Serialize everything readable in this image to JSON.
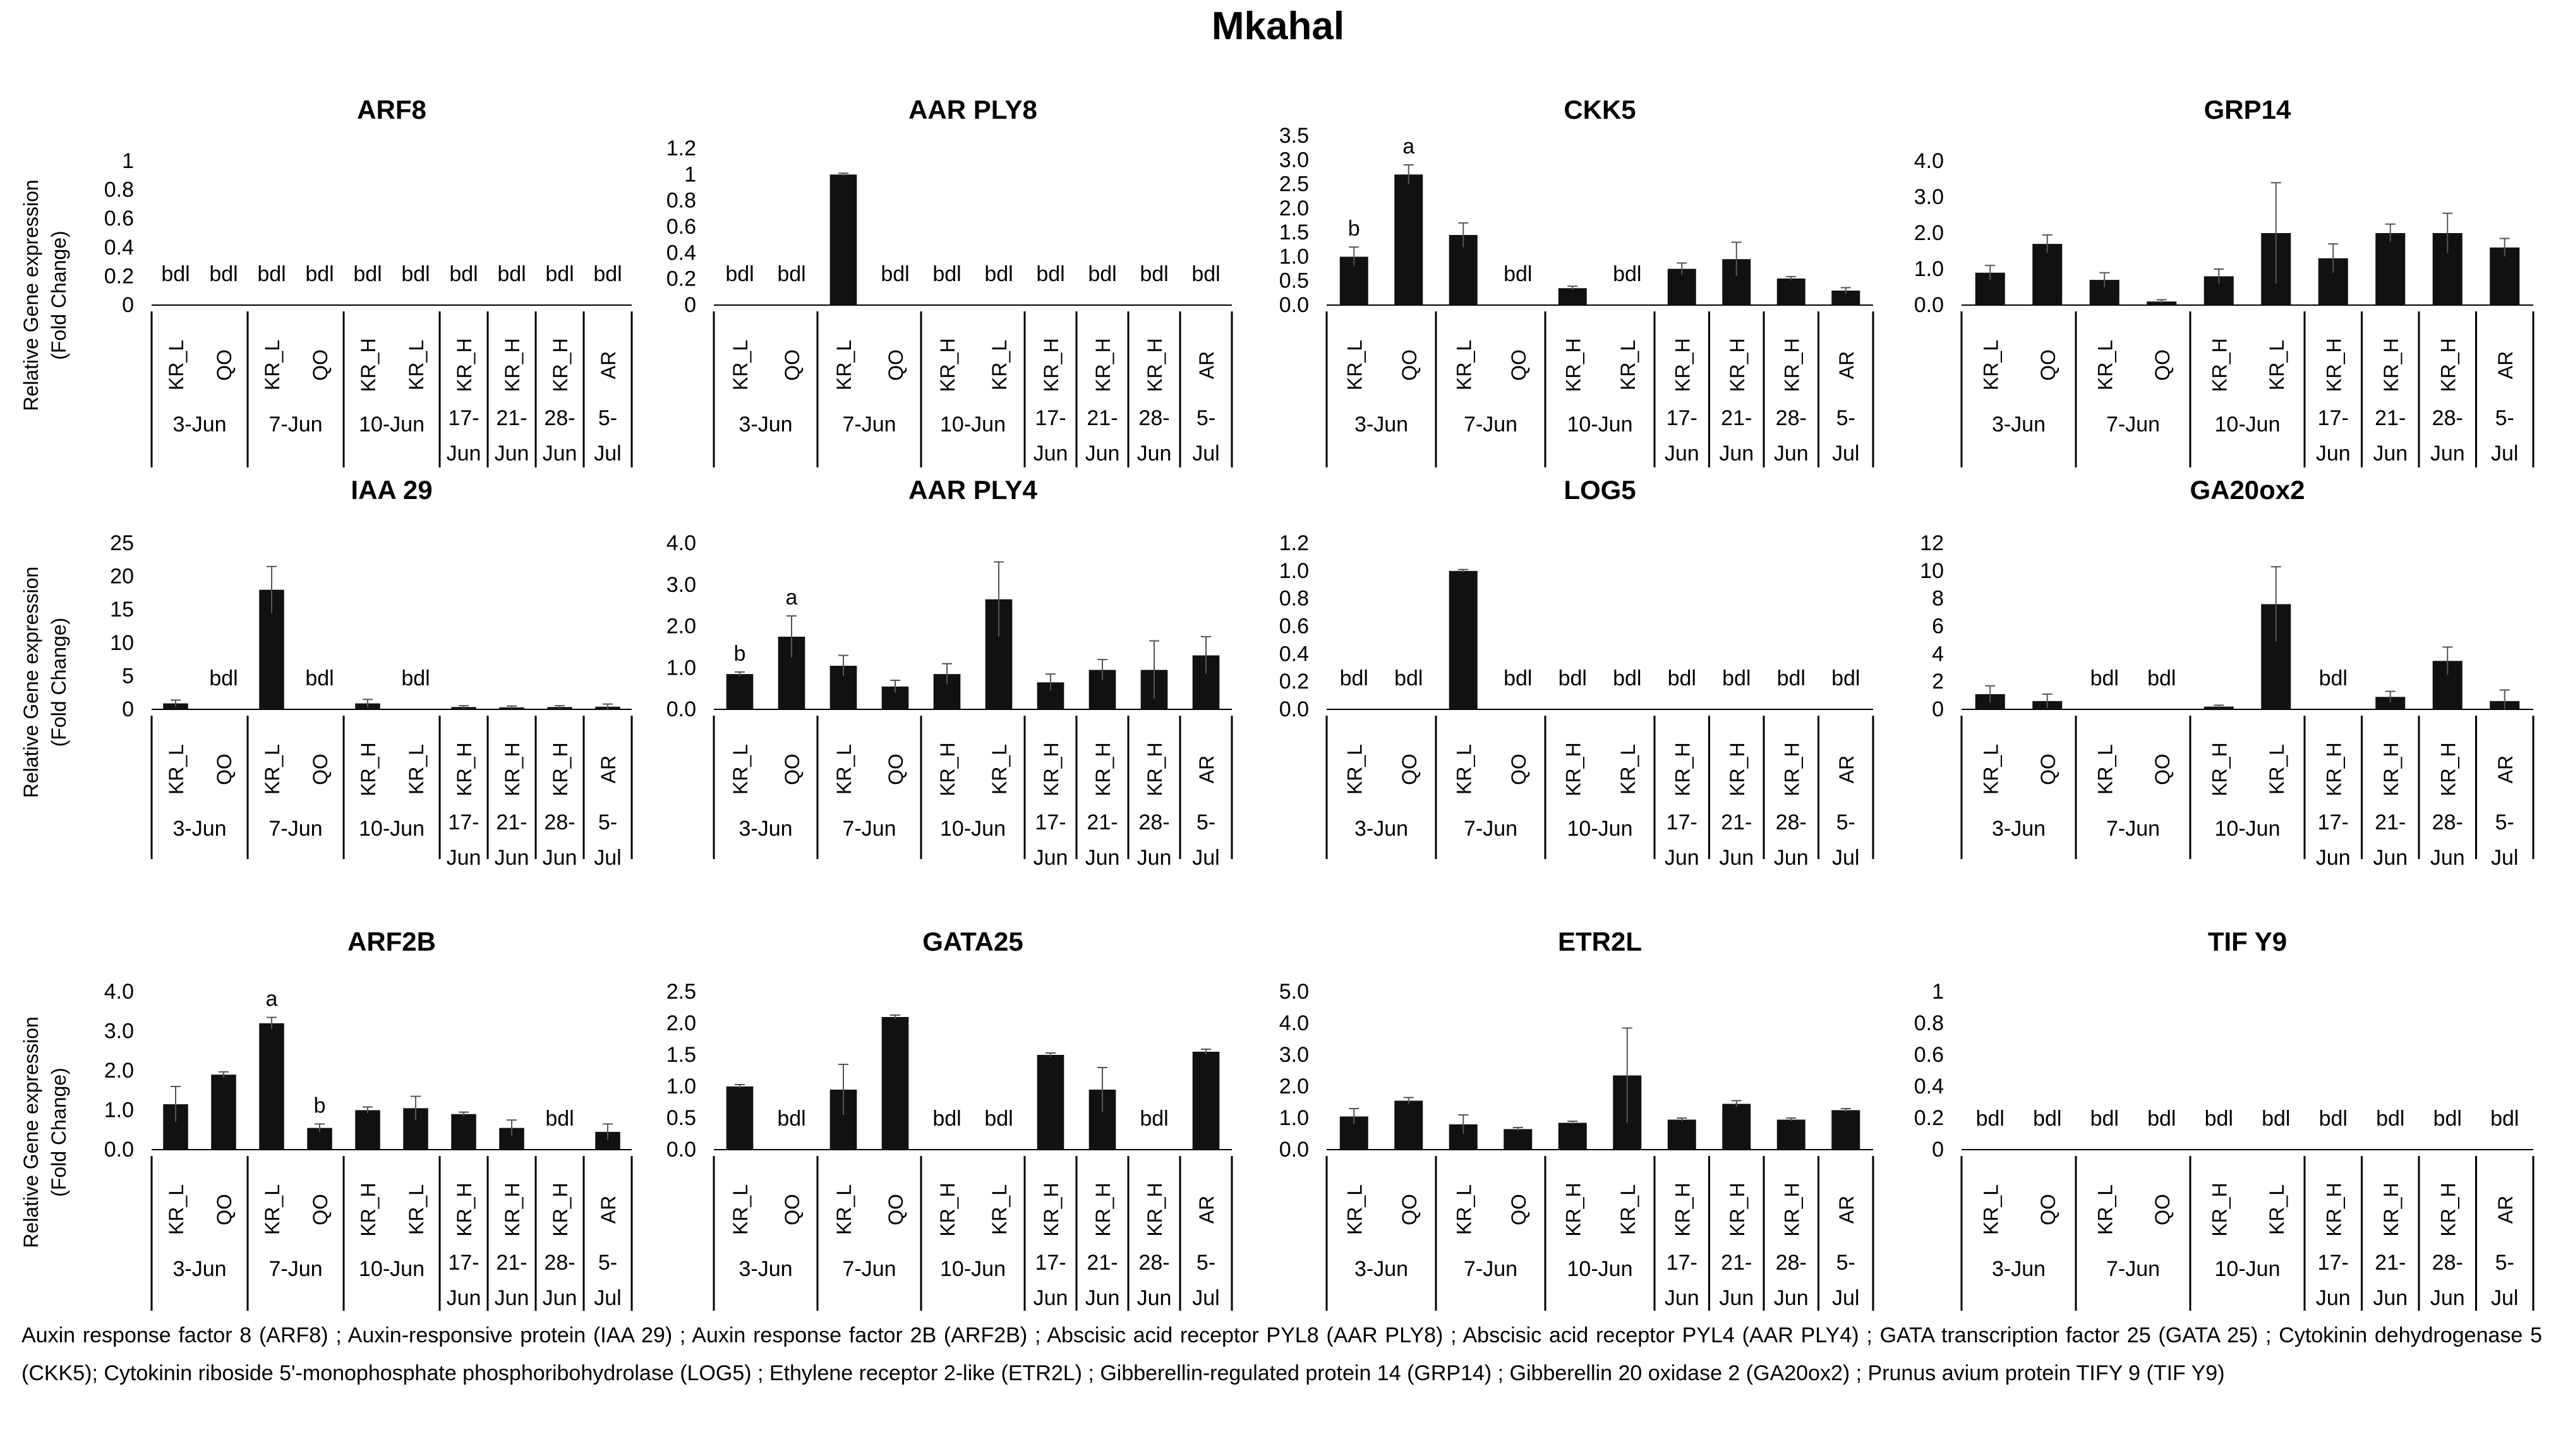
{
  "figure_title": "Mkahal",
  "caption": "Auxin response factor 8 (ARF8) ; Auxin-responsive protein (IAA 29) ; Auxin response factor 2B (ARF2B) ; Abscisic acid receptor PYL8 (AAR PLY8) ; Abscisic acid receptor PYL4 (AAR PLY4) ; GATA transcription factor 25 (GATA 25) ; Cytokinin dehydrogenase 5 (CKK5); Cytokinin riboside 5'-monophosphate phosphoribohydrolase (LOG5) ; Ethylene receptor 2-like (ETR2L) ; Gibberellin-regulated protein 14 (GRP14) ; Gibberellin 20 oxidase 2 (GA20ox2) ; Prunus avium protein TIFY 9 (TIF Y9)",
  "colors": {
    "bar": "#111111",
    "axis": "#000000"
  },
  "chart_data": [
    {
      "type": "bar",
      "title": "ARF8",
      "ylabel": "Relative Gene expression (Fold Change)",
      "categories": [
        "KR_L",
        "QO",
        "KR_L",
        "QO",
        "KR_H",
        "KR_L",
        "KR_H",
        "KR_H",
        "KR_H",
        "AR"
      ],
      "groups": [
        {
          "label": "3-Jun",
          "n": 2
        },
        {
          "label": "7-Jun",
          "n": 2
        },
        {
          "label": "10-Jun",
          "n": 2
        },
        {
          "label": "17-Jun",
          "n": 1
        },
        {
          "label": "21-Jun",
          "n": 1
        },
        {
          "label": "28-Jun",
          "n": 1
        },
        {
          "label": "5-Jul",
          "n": 1
        }
      ],
      "values": [
        null,
        null,
        null,
        null,
        null,
        null,
        null,
        null,
        null,
        null
      ],
      "errors": [
        0,
        0,
        0,
        0,
        0,
        0,
        0,
        0,
        0,
        0
      ],
      "labels": [
        "bdl",
        "bdl",
        "bdl",
        "bdl",
        "bdl",
        "bdl",
        "bdl",
        "bdl",
        "bdl",
        "bdl"
      ],
      "ylim": [
        0,
        1
      ],
      "yticks": [
        "0",
        "0.2",
        "0.4",
        "0.6",
        "0.8",
        "1"
      ]
    },
    {
      "type": "bar",
      "title": "AAR PLY8",
      "ylabel": "",
      "categories": [
        "KR_L",
        "QO",
        "KR_L",
        "QO",
        "KR_H",
        "KR_L",
        "KR_H",
        "KR_H",
        "KR_H",
        "AR"
      ],
      "groups": [
        {
          "label": "3-Jun",
          "n": 2
        },
        {
          "label": "7-Jun",
          "n": 2
        },
        {
          "label": "10-Jun",
          "n": 2
        },
        {
          "label": "17-Jun",
          "n": 1
        },
        {
          "label": "21-Jun",
          "n": 1
        },
        {
          "label": "28-Jun",
          "n": 1
        },
        {
          "label": "5-Jul",
          "n": 1
        }
      ],
      "values": [
        null,
        null,
        1.0,
        null,
        null,
        null,
        null,
        null,
        null,
        null
      ],
      "errors": [
        0,
        0,
        0.01,
        0,
        0,
        0,
        0,
        0,
        0,
        0
      ],
      "labels": [
        "bdl",
        "bdl",
        "",
        "bdl",
        "bdl",
        "bdl",
        "bdl",
        "bdl",
        "bdl",
        "bdl"
      ],
      "ylim": [
        0,
        1.2
      ],
      "yticks": [
        "0",
        "0.2",
        "0.4",
        "0.6",
        "0.8",
        "1",
        "1.2"
      ]
    },
    {
      "type": "bar",
      "title": "CKK5",
      "ylabel": "",
      "categories": [
        "KR_L",
        "QO",
        "KR_L",
        "QO",
        "KR_H",
        "KR_L",
        "KR_H",
        "KR_H",
        "KR_H",
        "AR"
      ],
      "groups": [
        {
          "label": "3-Jun",
          "n": 2
        },
        {
          "label": "7-Jun",
          "n": 2
        },
        {
          "label": "10-Jun",
          "n": 2
        },
        {
          "label": "17-Jun",
          "n": 1
        },
        {
          "label": "21-Jun",
          "n": 1
        },
        {
          "label": "28-Jun",
          "n": 1
        },
        {
          "label": "5-Jul",
          "n": 1
        }
      ],
      "values": [
        1.0,
        2.7,
        1.45,
        null,
        0.35,
        null,
        0.75,
        0.95,
        0.55,
        0.3
      ],
      "errors": [
        0.2,
        0.2,
        0.25,
        0,
        0.04,
        0,
        0.12,
        0.35,
        0.04,
        0.06
      ],
      "labels": [
        "b",
        "a",
        "",
        "bdl",
        "",
        "bdl",
        "",
        "",
        "",
        ""
      ],
      "ylim": [
        0,
        3.5
      ],
      "yticks": [
        "0.0",
        "0.5",
        "1.0",
        "1.5",
        "2.0",
        "2.5",
        "3.0",
        "3.5"
      ]
    },
    {
      "type": "bar",
      "title": "GRP14",
      "ylabel": "",
      "categories": [
        "KR_L",
        "QO",
        "KR_L",
        "QO",
        "KR_H",
        "KR_L",
        "KR_H",
        "KR_H",
        "KR_H",
        "AR"
      ],
      "groups": [
        {
          "label": "3-Jun",
          "n": 2
        },
        {
          "label": "7-Jun",
          "n": 2
        },
        {
          "label": "10-Jun",
          "n": 2
        },
        {
          "label": "17-Jun",
          "n": 1
        },
        {
          "label": "21-Jun",
          "n": 1
        },
        {
          "label": "28-Jun",
          "n": 1
        },
        {
          "label": "5-Jul",
          "n": 1
        }
      ],
      "values": [
        0.9,
        1.7,
        0.7,
        0.1,
        0.8,
        2.0,
        1.3,
        2.0,
        2.0,
        1.6
      ],
      "errors": [
        0.2,
        0.25,
        0.2,
        0.05,
        0.2,
        1.4,
        0.4,
        0.25,
        0.55,
        0.25
      ],
      "labels": [
        "",
        "",
        "",
        "",
        "",
        "",
        "",
        "",
        "",
        ""
      ],
      "ylim": [
        0,
        4
      ],
      "yticks": [
        "0.0",
        "1.0",
        "2.0",
        "3.0",
        "4.0"
      ]
    },
    {
      "type": "bar",
      "title": "IAA 29",
      "ylabel": "Relative Gene expression (Fold Change)",
      "categories": [
        "KR_L",
        "QO",
        "KR_L",
        "QO",
        "KR_H",
        "KR_L",
        "KR_H",
        "KR_H",
        "KR_H",
        "AR"
      ],
      "groups": [
        {
          "label": "3-Jun",
          "n": 2
        },
        {
          "label": "7-Jun",
          "n": 2
        },
        {
          "label": "10-Jun",
          "n": 2
        },
        {
          "label": "17-Jun",
          "n": 1
        },
        {
          "label": "21-Jun",
          "n": 1
        },
        {
          "label": "28-Jun",
          "n": 1
        },
        {
          "label": "5-Jul",
          "n": 1
        }
      ],
      "values": [
        0.9,
        null,
        18.0,
        null,
        0.9,
        null,
        0.35,
        0.3,
        0.35,
        0.4
      ],
      "errors": [
        0.5,
        0,
        3.5,
        0,
        0.6,
        0,
        0.2,
        0.2,
        0.2,
        0.4
      ],
      "labels": [
        "",
        "bdl",
        "",
        "bdl",
        "",
        "bdl",
        "",
        "",
        "",
        ""
      ],
      "ylim": [
        0,
        25
      ],
      "yticks": [
        "0",
        "5",
        "10",
        "15",
        "20",
        "25"
      ]
    },
    {
      "type": "bar",
      "title": "AAR PLY4",
      "ylabel": "",
      "categories": [
        "KR_L",
        "QO",
        "KR_L",
        "QO",
        "KR_H",
        "KR_L",
        "KR_H",
        "KR_H",
        "KR_H",
        "AR"
      ],
      "groups": [
        {
          "label": "3-Jun",
          "n": 2
        },
        {
          "label": "7-Jun",
          "n": 2
        },
        {
          "label": "10-Jun",
          "n": 2
        },
        {
          "label": "17-Jun",
          "n": 1
        },
        {
          "label": "21-Jun",
          "n": 1
        },
        {
          "label": "28-Jun",
          "n": 1
        },
        {
          "label": "5-Jul",
          "n": 1
        }
      ],
      "values": [
        0.85,
        1.75,
        1.05,
        0.55,
        0.85,
        2.65,
        0.65,
        0.95,
        0.95,
        1.3
      ],
      "errors": [
        0.05,
        0.5,
        0.25,
        0.15,
        0.25,
        0.9,
        0.2,
        0.25,
        0.7,
        0.45
      ],
      "labels": [
        "b",
        "a",
        "",
        "",
        "",
        "",
        "",
        "",
        "",
        ""
      ],
      "ylim": [
        0,
        4
      ],
      "yticks": [
        "0.0",
        "1.0",
        "2.0",
        "3.0",
        "4.0"
      ]
    },
    {
      "type": "bar",
      "title": "LOG5",
      "ylabel": "",
      "categories": [
        "KR_L",
        "QO",
        "KR_L",
        "QO",
        "KR_H",
        "KR_L",
        "KR_H",
        "KR_H",
        "KR_H",
        "AR"
      ],
      "groups": [
        {
          "label": "3-Jun",
          "n": 2
        },
        {
          "label": "7-Jun",
          "n": 2
        },
        {
          "label": "10-Jun",
          "n": 2
        },
        {
          "label": "17-Jun",
          "n": 1
        },
        {
          "label": "21-Jun",
          "n": 1
        },
        {
          "label": "28-Jun",
          "n": 1
        },
        {
          "label": "5-Jul",
          "n": 1
        }
      ],
      "values": [
        null,
        null,
        1.0,
        null,
        null,
        null,
        null,
        null,
        null,
        null
      ],
      "errors": [
        0,
        0,
        0.01,
        0,
        0,
        0,
        0,
        0,
        0,
        0
      ],
      "labels": [
        "bdl",
        "bdl",
        "",
        "bdl",
        "bdl",
        "bdl",
        "bdl",
        "bdl",
        "bdl",
        "bdl"
      ],
      "ylim": [
        0,
        1.2
      ],
      "yticks": [
        "0.0",
        "0.2",
        "0.4",
        "0.6",
        "0.8",
        "1.0",
        "1.2"
      ]
    },
    {
      "type": "bar",
      "title": "GA20ox2",
      "ylabel": "",
      "categories": [
        "KR_L",
        "QO",
        "KR_L",
        "QO",
        "KR_H",
        "KR_L",
        "KR_H",
        "KR_H",
        "KR_H",
        "AR"
      ],
      "groups": [
        {
          "label": "3-Jun",
          "n": 2
        },
        {
          "label": "7-Jun",
          "n": 2
        },
        {
          "label": "10-Jun",
          "n": 2
        },
        {
          "label": "17-Jun",
          "n": 1
        },
        {
          "label": "21-Jun",
          "n": 1
        },
        {
          "label": "28-Jun",
          "n": 1
        },
        {
          "label": "5-Jul",
          "n": 1
        }
      ],
      "values": [
        1.1,
        0.6,
        null,
        null,
        0.2,
        7.6,
        null,
        0.9,
        3.5,
        0.6
      ],
      "errors": [
        0.6,
        0.5,
        0,
        0,
        0.1,
        2.7,
        0,
        0.4,
        1.0,
        0.8
      ],
      "labels": [
        "",
        "",
        "bdl",
        "bdl",
        "",
        "",
        "bdl",
        "",
        "",
        ""
      ],
      "ylim": [
        0,
        12
      ],
      "yticks": [
        "0",
        "2",
        "4",
        "6",
        "8",
        "10",
        "12"
      ]
    },
    {
      "type": "bar",
      "title": "ARF2B",
      "ylabel": "Relative Gene expression (Fold Change)",
      "categories": [
        "KR_L",
        "QO",
        "KR_L",
        "QO",
        "KR_H",
        "KR_L",
        "KR_H",
        "KR_H",
        "KR_H",
        "AR"
      ],
      "groups": [
        {
          "label": "3-Jun",
          "n": 2
        },
        {
          "label": "7-Jun",
          "n": 2
        },
        {
          "label": "10-Jun",
          "n": 2
        },
        {
          "label": "17-Jun",
          "n": 1
        },
        {
          "label": "21-Jun",
          "n": 1
        },
        {
          "label": "28-Jun",
          "n": 1
        },
        {
          "label": "5-Jul",
          "n": 1
        }
      ],
      "values": [
        1.15,
        1.9,
        3.2,
        0.55,
        1.0,
        1.05,
        0.9,
        0.55,
        null,
        0.45
      ],
      "errors": [
        0.45,
        0.07,
        0.15,
        0.1,
        0.08,
        0.3,
        0.05,
        0.2,
        0,
        0.2
      ],
      "labels": [
        "",
        "",
        "a",
        "b",
        "",
        "",
        "",
        "",
        "bdl",
        ""
      ],
      "ylim": [
        0,
        4
      ],
      "yticks": [
        "0.0",
        "1.0",
        "2.0",
        "3.0",
        "4.0"
      ]
    },
    {
      "type": "bar",
      "title": "GATA25",
      "ylabel": "",
      "categories": [
        "KR_L",
        "QO",
        "KR_L",
        "QO",
        "KR_H",
        "KR_L",
        "KR_H",
        "KR_H",
        "KR_H",
        "AR"
      ],
      "groups": [
        {
          "label": "3-Jun",
          "n": 2
        },
        {
          "label": "7-Jun",
          "n": 2
        },
        {
          "label": "10-Jun",
          "n": 2
        },
        {
          "label": "17-Jun",
          "n": 1
        },
        {
          "label": "21-Jun",
          "n": 1
        },
        {
          "label": "28-Jun",
          "n": 1
        },
        {
          "label": "5-Jul",
          "n": 1
        }
      ],
      "values": [
        1.0,
        null,
        0.95,
        2.1,
        null,
        null,
        1.5,
        0.95,
        null,
        1.55
      ],
      "errors": [
        0.03,
        0,
        0.4,
        0.03,
        0,
        0,
        0.03,
        0.35,
        0,
        0.04
      ],
      "labels": [
        "",
        "bdl",
        "",
        "",
        "bdl",
        "bdl",
        "",
        "",
        "bdl",
        ""
      ],
      "ylim": [
        0,
        2.5
      ],
      "yticks": [
        "0.0",
        "0.5",
        "1.0",
        "1.5",
        "2.0",
        "2.5"
      ]
    },
    {
      "type": "bar",
      "title": "ETR2L",
      "ylabel": "",
      "categories": [
        "KR_L",
        "QO",
        "KR_L",
        "QO",
        "KR_H",
        "KR_L",
        "KR_H",
        "KR_H",
        "KR_H",
        "AR"
      ],
      "groups": [
        {
          "label": "3-Jun",
          "n": 2
        },
        {
          "label": "7-Jun",
          "n": 2
        },
        {
          "label": "10-Jun",
          "n": 2
        },
        {
          "label": "17-Jun",
          "n": 1
        },
        {
          "label": "21-Jun",
          "n": 1
        },
        {
          "label": "28-Jun",
          "n": 1
        },
        {
          "label": "5-Jul",
          "n": 1
        }
      ],
      "values": [
        1.05,
        1.55,
        0.8,
        0.65,
        0.85,
        2.35,
        0.95,
        1.45,
        0.95,
        1.25
      ],
      "errors": [
        0.25,
        0.1,
        0.3,
        0.05,
        0.05,
        1.5,
        0.05,
        0.1,
        0.05,
        0.05
      ],
      "labels": [
        "",
        "",
        "",
        "",
        "",
        "",
        "",
        "",
        "",
        ""
      ],
      "ylim": [
        0,
        5
      ],
      "yticks": [
        "0.0",
        "1.0",
        "2.0",
        "3.0",
        "4.0",
        "5.0"
      ]
    },
    {
      "type": "bar",
      "title": "TIF Y9",
      "ylabel": "",
      "categories": [
        "KR_L",
        "QO",
        "KR_L",
        "QO",
        "KR_H",
        "KR_L",
        "KR_H",
        "KR_H",
        "KR_H",
        "AR"
      ],
      "groups": [
        {
          "label": "3-Jun",
          "n": 2
        },
        {
          "label": "7-Jun",
          "n": 2
        },
        {
          "label": "10-Jun",
          "n": 2
        },
        {
          "label": "17-Jun",
          "n": 1
        },
        {
          "label": "21-Jun",
          "n": 1
        },
        {
          "label": "28-Jun",
          "n": 1
        },
        {
          "label": "5-Jul",
          "n": 1
        }
      ],
      "values": [
        null,
        null,
        null,
        null,
        null,
        null,
        null,
        null,
        null,
        null
      ],
      "errors": [
        0,
        0,
        0,
        0,
        0,
        0,
        0,
        0,
        0,
        0
      ],
      "labels": [
        "bdl",
        "bdl",
        "bdl",
        "bdl",
        "bdl",
        "bdl",
        "bdl",
        "bdl",
        "bdl",
        "bdl"
      ],
      "ylim": [
        0,
        1
      ],
      "yticks": [
        "0",
        "0.2",
        "0.4",
        "0.6",
        "0.8",
        "1"
      ]
    }
  ]
}
